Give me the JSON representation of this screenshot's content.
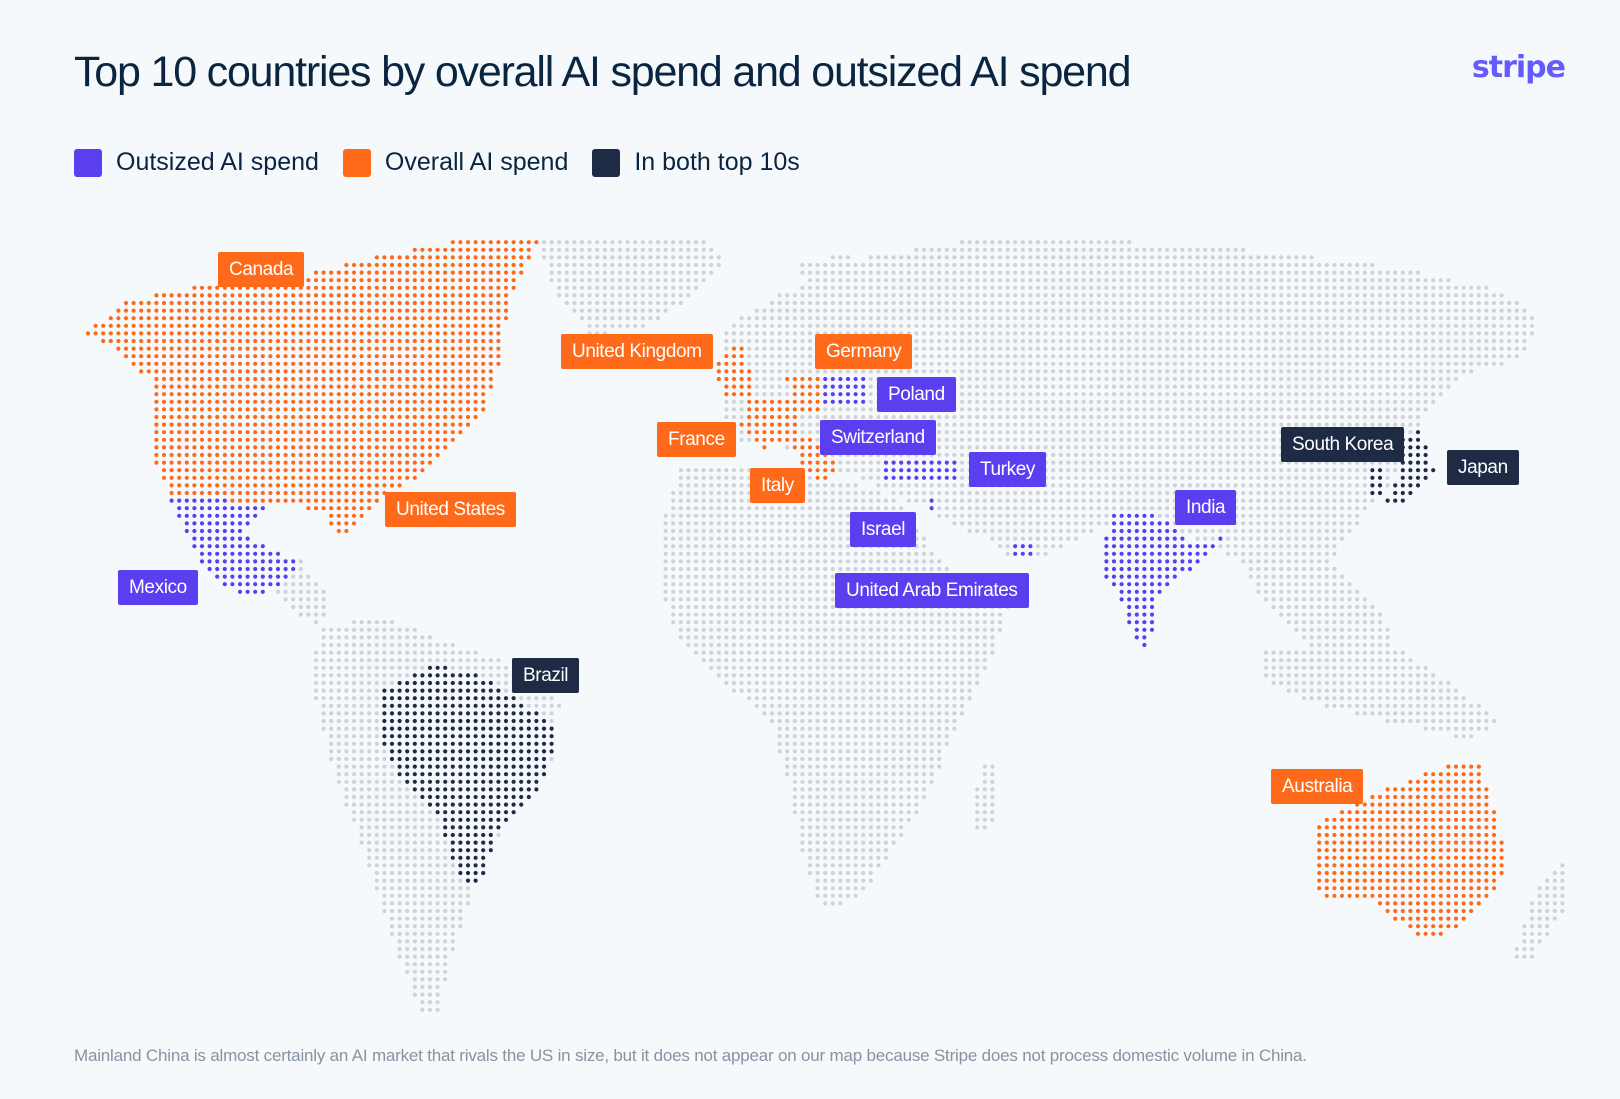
{
  "title": "Top 10 countries by overall AI spend and outsized AI spend",
  "logo": "stripe",
  "colors": {
    "outsized": "#5b3ef0",
    "overall": "#ff6a1a",
    "both": "#1f2b45",
    "land": "#cfd3d8",
    "brand": "#635bff"
  },
  "legend": [
    {
      "key": "outsized",
      "label": "Outsized AI spend"
    },
    {
      "key": "overall",
      "label": "Overall AI spend"
    },
    {
      "key": "both",
      "label": "In both top 10s"
    }
  ],
  "countries": [
    {
      "name": "Canada",
      "category": "overall"
    },
    {
      "name": "United States",
      "category": "overall"
    },
    {
      "name": "Mexico",
      "category": "outsized"
    },
    {
      "name": "Brazil",
      "category": "both"
    },
    {
      "name": "United Kingdom",
      "category": "overall"
    },
    {
      "name": "France",
      "category": "overall"
    },
    {
      "name": "Germany",
      "category": "overall"
    },
    {
      "name": "Italy",
      "category": "overall"
    },
    {
      "name": "Poland",
      "category": "outsized"
    },
    {
      "name": "Switzerland",
      "category": "outsized"
    },
    {
      "name": "Turkey",
      "category": "outsized"
    },
    {
      "name": "Israel",
      "category": "outsized"
    },
    {
      "name": "United Arab Emirates",
      "category": "outsized"
    },
    {
      "name": "India",
      "category": "outsized"
    },
    {
      "name": "South Korea",
      "category": "both"
    },
    {
      "name": "Japan",
      "category": "both"
    },
    {
      "name": "Australia",
      "category": "overall"
    }
  ],
  "footnote": "Mainland China is almost certainly an AI market that rivals the US in size, but it does not appear on our map because Stripe does not process domestic volume in China."
}
